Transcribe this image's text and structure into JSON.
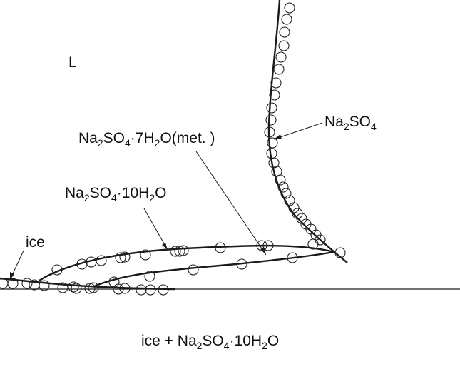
{
  "labels": {
    "liquid": "L",
    "na2so4": {
      "a": "Na",
      "b": "2",
      "c": "SO",
      "d": "4"
    },
    "hepta": {
      "a": "Na",
      "b": "2",
      "c": "SO",
      "d": "4",
      "e": "·7H",
      "f": "2",
      "g": "O(met. )"
    },
    "deca": {
      "a": "Na",
      "b": "2",
      "c": "SO",
      "d": "4",
      "e": "·10H",
      "f": "2",
      "g": "O"
    },
    "ice": "ice",
    "bottom": {
      "a": "ice + Na",
      "b": "2",
      "c": "SO",
      "d": "4",
      "e": "·10H",
      "f": "2",
      "g": "O"
    }
  },
  "curves": [
    {
      "id": "na2so4-solubility",
      "label_ref": "na2so4"
    },
    {
      "id": "decahydrate-solubility",
      "label_ref": "deca"
    },
    {
      "id": "heptahydrate-solubility",
      "label_ref": "hepta"
    },
    {
      "id": "ice-liquidus",
      "label_ref": "ice"
    }
  ],
  "marker": "open-circle",
  "colors": {
    "line": "#1a1a1a",
    "background": "#ffffff"
  }
}
